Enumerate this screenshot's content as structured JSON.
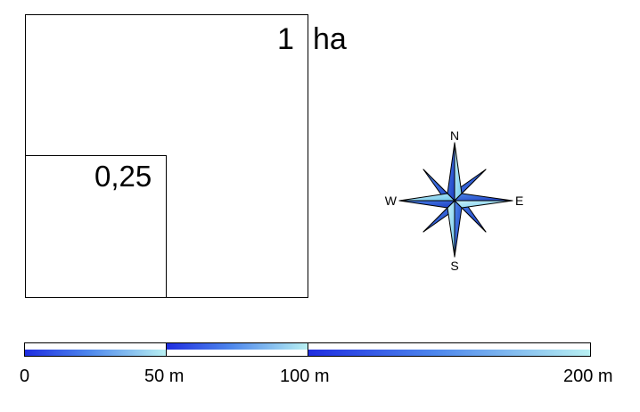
{
  "area_labels": {
    "large_number": "1",
    "large_unit": "ha",
    "small": "0,25"
  },
  "compass": {
    "north": "N",
    "south": "S",
    "east": "E",
    "west": "W"
  },
  "scale_bar": {
    "ticks": [
      "0",
      "50 m",
      "100 m",
      "200 m"
    ]
  },
  "colors": {
    "gradient_start": "#1f2de0",
    "gradient_end": "#b8f0f2",
    "compass_light": "#8fd8f0",
    "compass_dark": "#2f5fd6"
  }
}
